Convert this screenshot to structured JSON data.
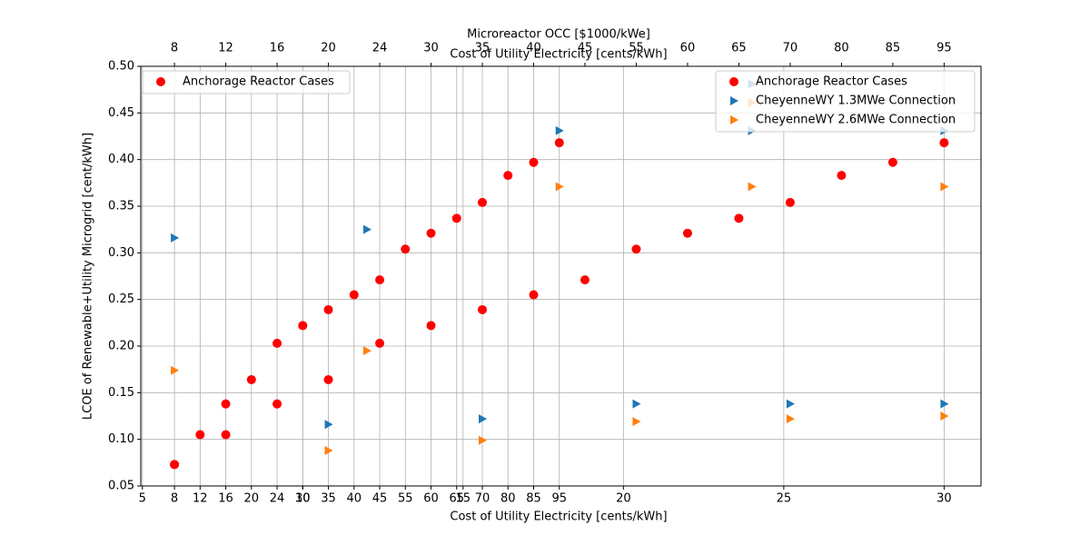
{
  "chart_data": {
    "type": "scatter",
    "xlabel": "Cost of Utility Electricity [cents/kWh]",
    "ylabel": "LCOE of Renewable+Utility Microgrid [cent/kWh]",
    "x2label": "Microreactor OCC [$1000/kWe]",
    "x3label": "Cost of Utility Electricity [cents/kWh]",
    "xlim": [
      4.95,
      31.15
    ],
    "xticks": [
      5,
      10,
      15,
      20,
      25,
      30
    ],
    "occ_xticks": [
      {
        "value": 6.0,
        "label": "8"
      },
      {
        "value": 6.8,
        "label": "12"
      },
      {
        "value": 7.6,
        "label": "16"
      },
      {
        "value": 8.4,
        "label": "20"
      },
      {
        "value": 9.2,
        "label": "24"
      },
      {
        "value": 10.0,
        "label": "30"
      },
      {
        "value": 10.8,
        "label": "35"
      },
      {
        "value": 11.6,
        "label": "40"
      },
      {
        "value": 12.4,
        "label": "45"
      },
      {
        "value": 13.2,
        "label": "55"
      },
      {
        "value": 14.0,
        "label": "60"
      },
      {
        "value": 14.8,
        "label": "65"
      },
      {
        "value": 15.6,
        "label": "70"
      },
      {
        "value": 16.4,
        "label": "80"
      },
      {
        "value": 17.2,
        "label": "85"
      },
      {
        "value": 18.0,
        "label": "95"
      }
    ],
    "x2ticks": [
      {
        "value": 6.0,
        "label": "8"
      },
      {
        "value": 7.6,
        "label": "12"
      },
      {
        "value": 9.2,
        "label": "16"
      },
      {
        "value": 10.8,
        "label": "20"
      },
      {
        "value": 12.4,
        "label": "24"
      },
      {
        "value": 14.0,
        "label": "30"
      },
      {
        "value": 15.6,
        "label": "35"
      },
      {
        "value": 17.2,
        "label": "40"
      },
      {
        "value": 18.8,
        "label": "45"
      },
      {
        "value": 20.4,
        "label": "55"
      },
      {
        "value": 22.0,
        "label": "60"
      },
      {
        "value": 23.6,
        "label": "65"
      },
      {
        "value": 25.2,
        "label": "70"
      },
      {
        "value": 26.8,
        "label": "80"
      },
      {
        "value": 28.4,
        "label": "85"
      },
      {
        "value": 30.0,
        "label": "95"
      }
    ],
    "ylim": [
      0.05,
      0.5
    ],
    "yticks": [
      {
        "value": 0.05,
        "label": "0.05"
      },
      {
        "value": 0.1,
        "label": "0.10"
      },
      {
        "value": 0.15,
        "label": "0.15"
      },
      {
        "value": 0.2,
        "label": "0.20"
      },
      {
        "value": 0.25,
        "label": "0.25"
      },
      {
        "value": 0.3,
        "label": "0.30"
      },
      {
        "value": 0.35,
        "label": "0.35"
      },
      {
        "value": 0.4,
        "label": "0.40"
      },
      {
        "value": 0.45,
        "label": "0.45"
      },
      {
        "value": 0.5,
        "label": "0.50"
      }
    ],
    "grid": true,
    "series": [
      {
        "name": "Anchorage Reactor Cases",
        "color": "#ff0000",
        "marker": "o",
        "x": [
          6.0,
          6.8,
          7.6,
          8.4,
          9.2,
          10.0,
          10.8,
          11.6,
          12.4,
          13.2,
          14.0,
          14.8,
          15.6,
          16.4,
          17.2,
          18.0,
          6.0,
          7.6,
          9.2,
          10.8,
          12.4,
          14.0,
          15.6,
          17.2,
          18.8,
          20.4,
          22.0,
          23.6,
          25.2,
          26.8,
          28.4,
          30.0
        ],
        "values": [
          0.073,
          0.105,
          0.138,
          0.164,
          0.203,
          0.222,
          0.239,
          0.255,
          0.271,
          0.304,
          0.321,
          0.337,
          0.354,
          0.383,
          0.397,
          0.418,
          0.073,
          0.105,
          0.138,
          0.164,
          0.203,
          0.222,
          0.239,
          0.255,
          0.271,
          0.304,
          0.321,
          0.337,
          0.354,
          0.383,
          0.397,
          0.418
        ]
      },
      {
        "name": "CheyenneWY 1.3MWe Connection",
        "color": "#1f77b4",
        "marker": ">",
        "x": [
          6.0,
          12.0,
          10.8,
          15.6,
          18.0,
          20.4,
          24.0,
          24.0,
          25.2,
          30.0,
          30.0
        ],
        "values": [
          0.316,
          0.325,
          0.116,
          0.122,
          0.431,
          0.138,
          0.431,
          0.481,
          0.138,
          0.431,
          0.138
        ]
      },
      {
        "name": "CheyenneWY 2.6MWe Connection",
        "color": "#ff7f0e",
        "marker": ">",
        "x": [
          6.0,
          12.0,
          10.8,
          15.6,
          18.0,
          20.4,
          24.0,
          24.0,
          25.2,
          30.0,
          30.0
        ],
        "values": [
          0.174,
          0.195,
          0.088,
          0.099,
          0.371,
          0.119,
          0.371,
          0.461,
          0.122,
          0.371,
          0.125
        ]
      }
    ],
    "legends": [
      {
        "loc": "upper left",
        "series": [
          0
        ]
      },
      {
        "loc": "upper right",
        "series": [
          0,
          1,
          2
        ]
      }
    ]
  }
}
